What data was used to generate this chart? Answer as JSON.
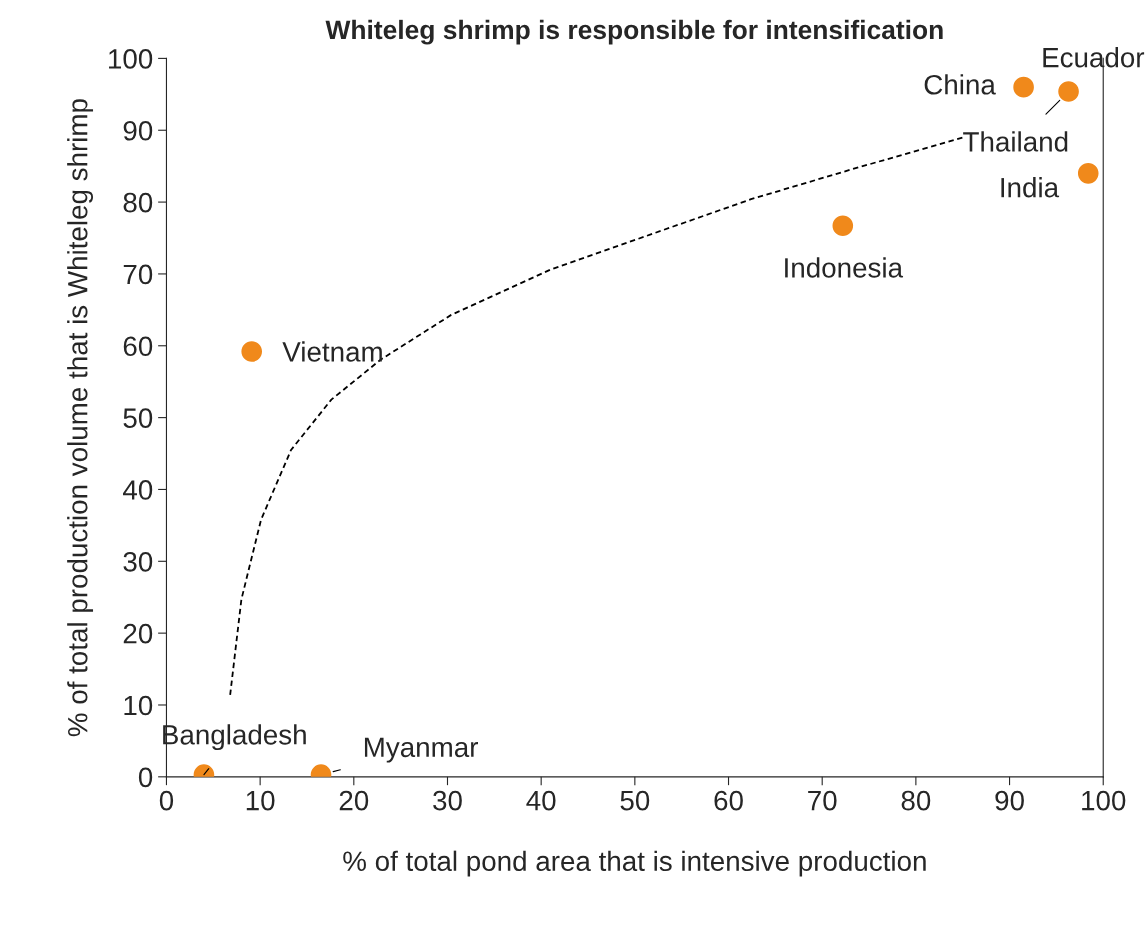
{
  "chart_data": {
    "type": "scatter",
    "title": "Whiteleg shrimp is responsible for intensification",
    "xlabel": "% of total pond area that is intensive production",
    "ylabel": "% of total production volume that is Whiteleg shrimp",
    "series": [
      {
        "color": "#f0891b",
        "marker": "circle",
        "x": [
          4.0,
          16.5,
          9.1,
          72.2,
          91.5,
          96.3,
          98.4
        ],
        "values": [
          0.3,
          0.3,
          59.2,
          76.7,
          96.0,
          95.4,
          84.0
        ]
      },
      {
        "type": "line",
        "color": "#000000",
        "line_style": "dashed",
        "marker": "none",
        "x": [
          6.8,
          8.0,
          10.1,
          13.3,
          17.6,
          22.9,
          30.4,
          41.0,
          51.7,
          62.4,
          73.0,
          85.3
        ],
        "values": [
          11.4,
          24.7,
          35.8,
          45.5,
          52.5,
          58.1,
          64.3,
          70.6,
          75.5,
          80.4,
          84.5,
          89.1
        ]
      }
    ],
    "annotations": [
      {
        "text": "Bangladesh",
        "x": 4.0,
        "y": 0.3
      },
      {
        "text": "Myanmar",
        "x": 16.5,
        "y": 0.3
      },
      {
        "text": "Vietnam",
        "x": 9.1,
        "y": 59.2
      },
      {
        "text": "Indonesia",
        "x": 72.2,
        "y": 76.7
      },
      {
        "text": "China",
        "x": 91.5,
        "y": 96.0
      },
      {
        "text": "Thailand",
        "x": 96.3,
        "y": 95.4
      },
      {
        "text": "India",
        "x": 98.4,
        "y": 84.0
      },
      "Ecuador"
    ],
    "xlim": [
      0,
      100
    ],
    "xticks": [
      0,
      10,
      20,
      30,
      40,
      50,
      60,
      70,
      80,
      90,
      100
    ],
    "ylim": [
      0,
      100
    ],
    "yticks": [
      0,
      10,
      20,
      30,
      40,
      50,
      60,
      70,
      80,
      90,
      100
    ],
    "grid": false
  }
}
